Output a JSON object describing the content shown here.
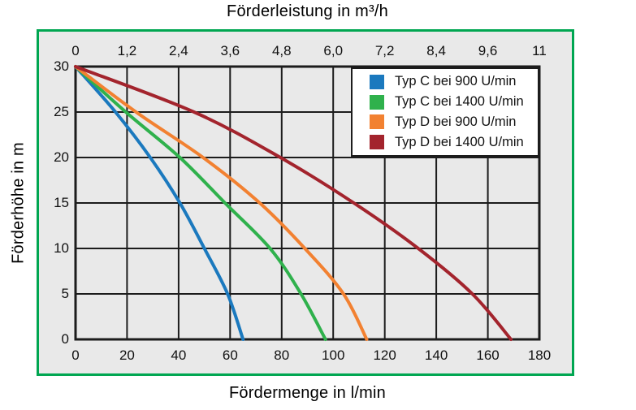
{
  "colors": {
    "frame_green": "#00a651",
    "plot_background": "#e9e9e9",
    "grid_line": "#1c1c1c",
    "legend_border": "#1c1c1c",
    "series_blue": "#1b79be",
    "series_green": "#2fb14c",
    "series_orange": "#f28131",
    "series_darkred": "#a3242d"
  },
  "chart_data": {
    "type": "line",
    "grid": true,
    "legend_position": "top-right",
    "top_axis": {
      "label": "Förderleistung in m³/h",
      "ticks": [
        "0",
        "1,2",
        "2,4",
        "3,6",
        "4,8",
        "6,0",
        "7,2",
        "8,4",
        "9,6",
        "11"
      ],
      "tick_positions_lmin": [
        0,
        20,
        40,
        60,
        80,
        100,
        120,
        140,
        160,
        180
      ]
    },
    "bottom_axis": {
      "label": "Fördermenge in l/min",
      "ticks": [
        "0",
        "20",
        "40",
        "60",
        "80",
        "100",
        "120",
        "140",
        "160",
        "180"
      ],
      "range": [
        0,
        180
      ]
    },
    "left_axis": {
      "label": "Förderhöhe in m",
      "ticks": [
        "30",
        "25",
        "20",
        "15",
        "10",
        "5",
        "0"
      ],
      "range": [
        0,
        30
      ]
    },
    "series": [
      {
        "name": "Typ C bei 900 U/min",
        "color_key": "series_blue",
        "points_q_h": [
          [
            0,
            30
          ],
          [
            15.5,
            25
          ],
          [
            29,
            20
          ],
          [
            40.5,
            15
          ],
          [
            50,
            10
          ],
          [
            59,
            5
          ],
          [
            65,
            0
          ]
        ]
      },
      {
        "name": "Typ C bei 1400 U/min",
        "color_key": "series_green",
        "points_q_h": [
          [
            0,
            30
          ],
          [
            19.5,
            25
          ],
          [
            40.5,
            20
          ],
          [
            58,
            15
          ],
          [
            75.5,
            10
          ],
          [
            87.5,
            5
          ],
          [
            97,
            0
          ]
        ]
      },
      {
        "name": "Typ D bei 900 U/min",
        "color_key": "series_orange",
        "points_q_h": [
          [
            0,
            30
          ],
          [
            23.5,
            25
          ],
          [
            49.5,
            20
          ],
          [
            71.5,
            15
          ],
          [
            89,
            10
          ],
          [
            104,
            5
          ],
          [
            113,
            0
          ]
        ]
      },
      {
        "name": "Typ D bei 1400 U/min",
        "color_key": "series_darkred",
        "points_q_h": [
          [
            0,
            30
          ],
          [
            46,
            25
          ],
          [
            79.5,
            20
          ],
          [
            108,
            15
          ],
          [
            133,
            10
          ],
          [
            154,
            5
          ],
          [
            169,
            0
          ]
        ]
      }
    ]
  }
}
